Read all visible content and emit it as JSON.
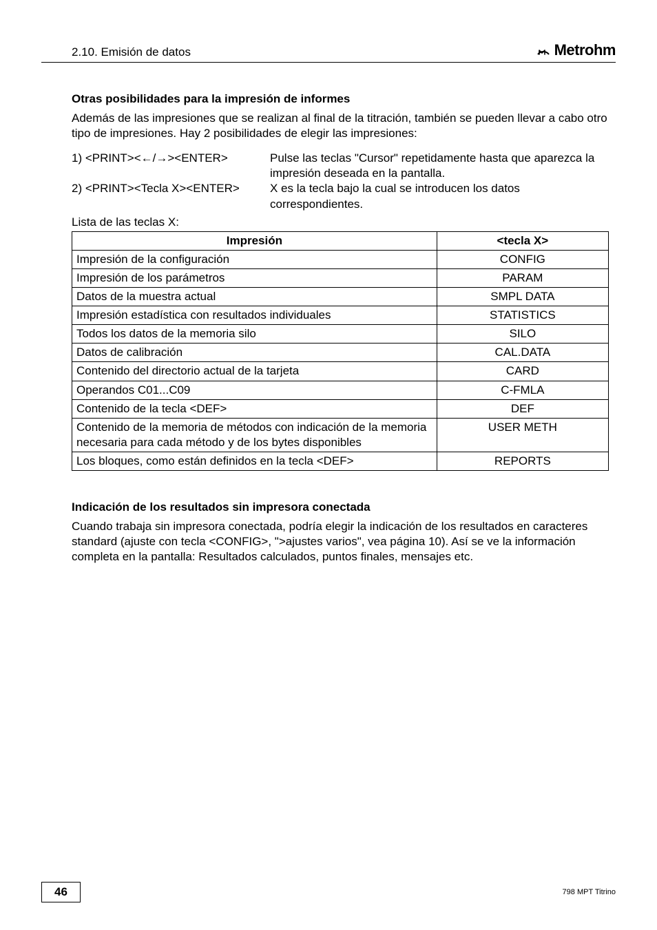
{
  "header": {
    "section": "2.10. Emisión de datos",
    "brand": "Metrohm"
  },
  "section1": {
    "title": "Otras posibilidades para la impresión de informes",
    "intro": "Además de las impresiones que se realizan al final de la titración, también se pueden llevar a cabo otro tipo de impresiones. Hay 2 posibilidades de elegir las impresiones:",
    "opt1_left": "1) <PRINT><←/→><ENTER>",
    "opt1_right": "Pulse las teclas \"Cursor\" repetidamente hasta que aparezca la impresión deseada en la pantalla.",
    "opt2_left": "2) <PRINT><Tecla X><ENTER>",
    "opt2_right": "X es la tecla bajo la cual se introducen los datos correspondientes.",
    "list_label": "Lista de las teclas X:"
  },
  "table": {
    "col1_header": "Impresión",
    "col2_header": "<tecla X>",
    "rows": [
      {
        "c1": "Impresión de la configuración",
        "c2": "CONFIG"
      },
      {
        "c1": "Impresión de los parámetros",
        "c2": "PARAM"
      },
      {
        "c1": "Datos de la muestra actual",
        "c2": "SMPL DATA"
      },
      {
        "c1": "Impresión estadística con resultados individuales",
        "c2": "STATISTICS"
      },
      {
        "c1": "Todos los datos de la memoria silo",
        "c2": "SILO"
      },
      {
        "c1": "Datos de calibración",
        "c2": "CAL.DATA"
      },
      {
        "c1": "Contenido del directorio actual de la tarjeta",
        "c2": "CARD"
      },
      {
        "c1": "Operandos C01...C09",
        "c2": "C-FMLA"
      },
      {
        "c1": "Contenido de la tecla <DEF>",
        "c2": "DEF"
      },
      {
        "c1": "Contenido de la memoria de métodos con indicación de la memoria necesaria para cada método y de los bytes disponibles",
        "c2": "USER METH"
      },
      {
        "c1": "Los bloques, como están definidos en la tecla <DEF>",
        "c2": "REPORTS"
      }
    ]
  },
  "section2": {
    "title": "Indicación de los resultados sin impresora conectada",
    "body": "Cuando trabaja sin impresora conectada, podría elegir la indicación de los resultados en caracteres standard (ajuste con tecla <CONFIG>, \">ajustes varios\", vea página 10). Así se ve la información completa en la pantalla: Resultados calculados, puntos finales, mensajes etc."
  },
  "footer": {
    "page_number": "46",
    "doc_id": "798 MPT Titrino"
  }
}
